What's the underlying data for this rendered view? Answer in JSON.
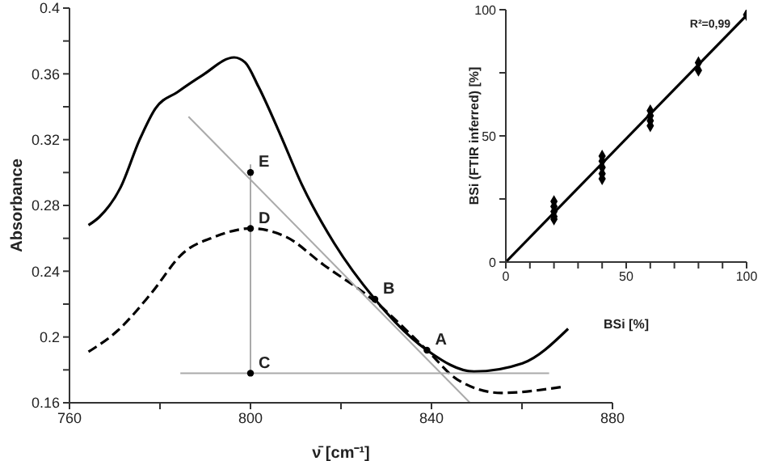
{
  "chart_data": [
    {
      "type": "line",
      "xlabel": "ν̄ [cm⁻¹]",
      "ylabel": "Absorbance",
      "xlim": [
        760,
        880
      ],
      "ylim": [
        0.16,
        0.4
      ],
      "xticks": [
        760,
        {
          "value": 780,
          "label": null
        },
        800,
        {
          "value": 820,
          "label": null
        },
        840,
        {
          "value": 860,
          "label": null
        },
        880
      ],
      "yticks": [
        0.16,
        {
          "value": 0.18,
          "label": null
        },
        0.2,
        {
          "value": 0.22,
          "label": null
        },
        0.24,
        {
          "value": 0.26,
          "label": null
        },
        0.28,
        {
          "value": 0.3,
          "label": null
        },
        0.32,
        {
          "value": 0.34,
          "label": null
        },
        0.36,
        {
          "value": 0.38,
          "label": null
        },
        0.4
      ],
      "marker": "none",
      "series": [
        {
          "color": "#000000",
          "line_style": "solid",
          "x": [
            764.2,
            766.6,
            771.3,
            775.5,
            779,
            783.9,
            789.3,
            796.4,
            798.8,
            801.8,
            806.6,
            811.3,
            818.5,
            827.5,
            839,
            849.4,
            860.1,
            870.2
          ],
          "values": [
            0.268,
            0.273,
            0.291,
            0.32,
            0.339,
            0.349,
            0.359,
            0.37,
            0.367,
            0.352,
            0.323,
            0.293,
            0.257,
            0.223,
            0.192,
            0.179,
            0.184,
            0.205
          ]
        },
        {
          "color": "#000000",
          "line_style": "dashed",
          "x": [
            764.2,
            770.7,
            777.9,
            785.1,
            792.2,
            800,
            807.8,
            816.1,
            826.9,
            839,
            845.8,
            855.4,
            869.6
          ],
          "values": [
            0.191,
            0.204,
            0.226,
            0.251,
            0.261,
            0.266,
            0.261,
            0.244,
            0.223,
            0.192,
            0.174,
            0.166,
            0.17
          ]
        },
        {
          "color": "#aaaaaa",
          "line_style": "solid",
          "x": [
            786.3,
            848.5
          ],
          "values": [
            0.334,
            0.16
          ]
        },
        {
          "color": "#aaaaaa",
          "line_style": "solid",
          "x": [
            800,
            800
          ],
          "values": [
            0.178,
            0.305
          ]
        },
        {
          "color": "#aaaaaa",
          "line_style": "solid",
          "x": [
            784.5,
            866
          ],
          "values": [
            0.178,
            0.178
          ]
        },
        {
          "type": "scatter",
          "color": "#000000",
          "marker": "circle",
          "x": [
            800,
            800,
            800,
            827.5,
            839
          ],
          "values": [
            0.3,
            0.266,
            0.178,
            0.223,
            0.192
          ]
        }
      ],
      "annotations": [
        {
          "text": "E",
          "x": 800,
          "y": 0.3
        },
        {
          "text": "D",
          "x": 800,
          "y": 0.266
        },
        {
          "text": "C",
          "x": 800,
          "y": 0.178
        },
        {
          "text": "B",
          "x": 827.5,
          "y": 0.223
        },
        {
          "text": "A",
          "x": 839,
          "y": 0.192
        }
      ]
    },
    {
      "type": "scatter",
      "xlabel": "BSi [%]",
      "ylabel": "BSi (FTIR inferred) [%]",
      "xlim": [
        0,
        100
      ],
      "ylim": [
        0,
        100
      ],
      "xticks": [
        0,
        {
          "value": 10,
          "label": null
        },
        {
          "value": 20,
          "label": null
        },
        {
          "value": 30,
          "label": null
        },
        {
          "value": 40,
          "label": null
        },
        50,
        {
          "value": 60,
          "label": null
        },
        {
          "value": 70,
          "label": null
        },
        {
          "value": 80,
          "label": null
        },
        {
          "value": 90,
          "label": null
        },
        100
      ],
      "yticks": [
        0,
        {
          "value": 25,
          "label": null
        },
        50,
        {
          "value": 75,
          "label": null
        },
        100
      ],
      "marker": "diamond",
      "series": [
        {
          "color": "#000000",
          "x": [
            20,
            20,
            20,
            20,
            20,
            40,
            40,
            40,
            40,
            40,
            60,
            60,
            60,
            60,
            80,
            80,
            100
          ],
          "values": [
            24,
            22,
            20,
            18,
            17,
            42,
            40,
            37.5,
            35,
            33,
            60,
            58,
            56,
            54,
            79,
            76,
            98
          ]
        },
        {
          "type": "line",
          "color": "#000000",
          "line_style": "solid",
          "marker": "none",
          "x": [
            0,
            100
          ],
          "values": [
            0,
            97.8
          ]
        }
      ],
      "annotations": [
        "R²=0,99"
      ]
    }
  ]
}
